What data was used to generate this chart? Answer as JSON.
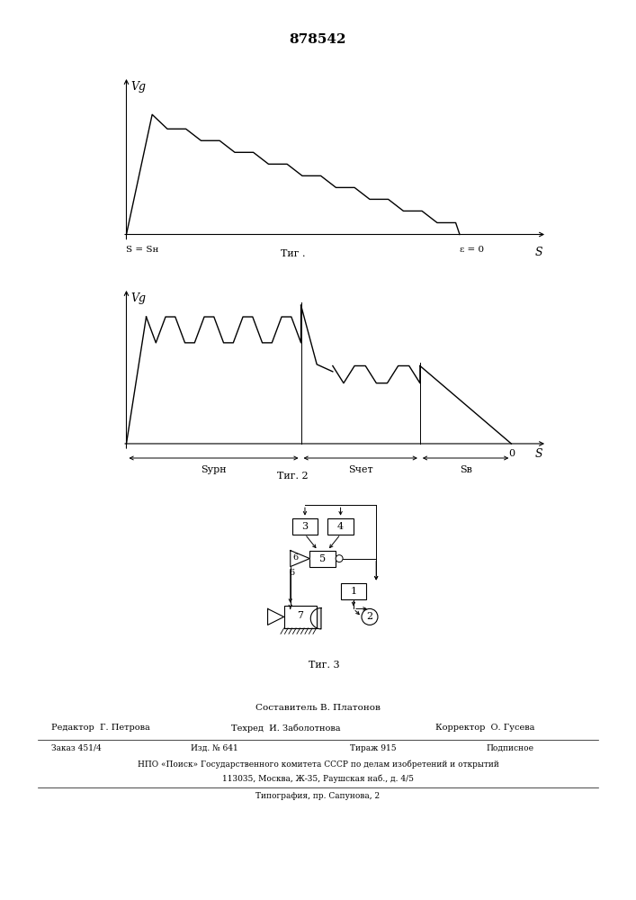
{
  "title": "878542",
  "fig1": {
    "label": "Τиг .",
    "xlabel_left": "S = Sн",
    "xlabel_right": "S",
    "xlabel_zero": "ε = 0",
    "ylabel": "Vg"
  },
  "fig2": {
    "label": "Τиг. 2",
    "xlabel_right": "S",
    "ylabel": "Vg",
    "xlabel_zero": "0",
    "label_surn": "Sурн",
    "label_schet": "Sчет",
    "label_sb": "Sв"
  },
  "fig3_label": "Τиг. 3",
  "footer_composer": "Составитель В. Платонов",
  "footer_editor": "Редактор  Г. Петрова",
  "footer_tech": "Техред  И. Заболотнова",
  "footer_corrector": "Корректор  О. Гусева",
  "footer_order": "Заказ 451/4",
  "footer_edition": "Изд. № 641",
  "footer_tirazh": "Тираж 915",
  "footer_podpisnoe": "Подписное",
  "footer_npo": "НПО «Поиск» Государственного комитета СССР по делам изобретений и открытий",
  "footer_address": "113035, Москва, Ж-35, Раушская наб., д. 4/5",
  "footer_tipografia": "Типография, пр. Сапунова, 2",
  "bg_color": "#ffffff",
  "line_color": "#000000"
}
